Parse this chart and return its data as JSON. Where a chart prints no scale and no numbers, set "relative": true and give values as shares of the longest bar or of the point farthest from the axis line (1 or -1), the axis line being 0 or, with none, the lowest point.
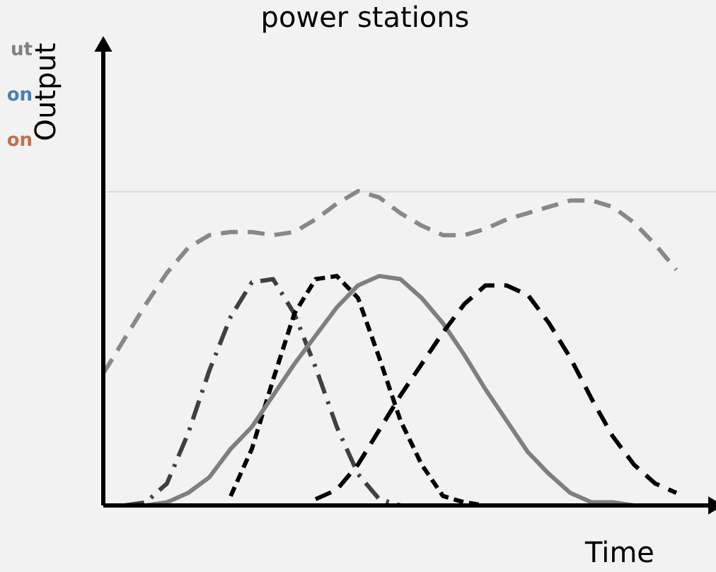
{
  "chart_data": {
    "type": "line",
    "title": "power stations",
    "xlabel": "Time",
    "ylabel": "Output",
    "relative": true,
    "grid": false,
    "marker": "none",
    "annotations": [
      "ut",
      "on",
      "on"
    ],
    "categories": [
      null,
      null,
      null,
      null,
      null,
      null,
      null,
      null,
      null,
      null,
      null,
      null,
      null,
      null,
      null,
      null,
      null,
      null,
      null,
      null,
      null,
      null,
      null,
      null,
      null,
      null,
      null,
      null,
      null
    ],
    "series": [
      {
        "color": "#888888",
        "line_style": "dashed",
        "values": [
          0.42,
          0.53,
          0.64,
          0.74,
          0.82,
          0.86,
          0.87,
          0.87,
          0.86,
          0.87,
          0.91,
          0.96,
          1.0,
          0.98,
          0.93,
          0.89,
          0.86,
          0.86,
          0.88,
          0.91,
          0.93,
          0.95,
          0.97,
          0.97,
          0.95,
          0.9,
          0.83,
          0.75,
          null
        ]
      },
      {
        "color": "#404040",
        "line_style": "dashdot",
        "values": [
          null,
          0,
          0.01,
          0.07,
          0.23,
          0.43,
          0.6,
          0.71,
          0.72,
          0.61,
          0.44,
          0.25,
          0.1,
          0.02,
          0,
          null,
          null,
          null,
          null,
          null,
          null,
          null,
          null,
          null,
          null,
          null,
          null,
          null,
          null
        ]
      },
      {
        "color": "#000000",
        "line_style": "dotted",
        "values": [
          null,
          null,
          null,
          null,
          null,
          null,
          0.03,
          0.18,
          0.4,
          0.61,
          0.72,
          0.73,
          0.66,
          0.47,
          0.27,
          0.13,
          0.03,
          0.01,
          0,
          null,
          null,
          null,
          null,
          null,
          null,
          null,
          null,
          null,
          null
        ]
      },
      {
        "color": "#7f7f7f",
        "line_style": "solid",
        "values": [
          null,
          0,
          0,
          0.01,
          0.04,
          0.09,
          0.18,
          0.25,
          0.35,
          0.45,
          0.54,
          0.63,
          0.7,
          0.73,
          0.72,
          0.66,
          0.58,
          0.48,
          0.37,
          0.27,
          0.17,
          0.1,
          0.04,
          0.01,
          0.01,
          0,
          0,
          null,
          null
        ]
      },
      {
        "color": "#000000",
        "line_style": "dashed",
        "values": [
          null,
          null,
          null,
          null,
          null,
          null,
          null,
          null,
          null,
          null,
          0.02,
          0.05,
          0.13,
          0.24,
          0.35,
          0.45,
          0.55,
          0.64,
          0.7,
          0.7,
          0.67,
          0.58,
          0.47,
          0.34,
          0.22,
          0.13,
          0.07,
          0.04,
          null
        ]
      }
    ]
  }
}
